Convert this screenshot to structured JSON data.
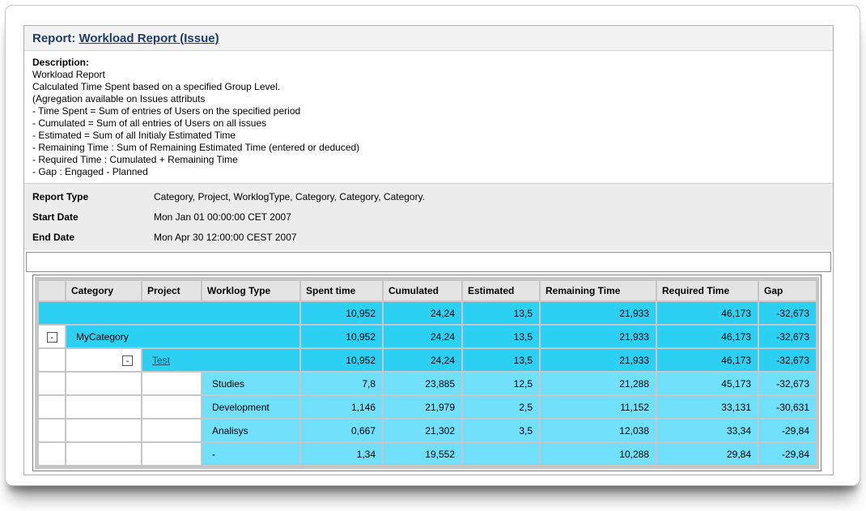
{
  "report": {
    "title_prefix": "Report:",
    "title_link": "Workload Report (Issue)",
    "description": {
      "label": "Description:",
      "lines": [
        "Workload Report",
        "Calculated Time Spent based on a specified Group Level.",
        "(Agregation available on Issues attributs",
        "- Time Spent = Sum of entries of Users on the specified period",
        "- Cumulated = Sum of all entries of Users on all issues",
        "- Estimated = Sum of all Initialy Estimated Time",
        "- Remaining Time : Sum of Remaining Estimated Time (entered or deduced)",
        "- Required Time : Cumulated + Remaining Time",
        "- Gap : Engaged - Planned"
      ]
    },
    "meta": [
      {
        "label": "Report Type",
        "value": "Category, Project, WorklogType, Category, Category, Category."
      },
      {
        "label": "Start Date",
        "value": "Mon Jan 01 00:00:00 CET 2007"
      },
      {
        "label": "End Date",
        "value": "Mon Apr 30 12:00:00 CEST 2007"
      }
    ],
    "table": {
      "columns": [
        "",
        "Category",
        "Project",
        "Worklog Type",
        "Spent time",
        "Cumulated",
        "Estimated",
        "Remaining Time",
        "Required Time",
        "Gap"
      ],
      "rows": [
        {
          "type": "total",
          "label": "",
          "values": [
            "10,952",
            "24,24",
            "13,5",
            "21,933",
            "46,173",
            "-32,673"
          ]
        },
        {
          "type": "category",
          "label": "MyCategory",
          "expander": "-",
          "values": [
            "10,952",
            "24,24",
            "13,5",
            "21,933",
            "46,173",
            "-32,673"
          ]
        },
        {
          "type": "project",
          "label": "Test",
          "expander": "-",
          "values": [
            "10,952",
            "24,24",
            "13,5",
            "21,933",
            "46,173",
            "-32,673"
          ]
        },
        {
          "type": "worklog",
          "label": "Studies",
          "values": [
            "7,8",
            "23,885",
            "12,5",
            "21,288",
            "45,173",
            "-32,673"
          ]
        },
        {
          "type": "worklog",
          "label": "Development",
          "values": [
            "1,146",
            "21,979",
            "2,5",
            "11,152",
            "33,131",
            "-30,631"
          ]
        },
        {
          "type": "worklog",
          "label": "Analisys",
          "values": [
            "0,667",
            "21,302",
            "3,5",
            "12,038",
            "33,34",
            "-29,84"
          ]
        },
        {
          "type": "worklog",
          "label": "-",
          "values": [
            "1,34",
            "19,552",
            "",
            "10,288",
            "29,84",
            "-29,84"
          ]
        }
      ]
    },
    "colors": {
      "title_navy": "#1b3c6d",
      "cell_link": "#1d4a66",
      "row_cyan_bright": "#2bd0f2",
      "row_cyan_light": "#71e0fa",
      "header_gray": "#e4e4e4",
      "panel_gray": "#c6c6c6",
      "meta_gray": "#ececec"
    }
  }
}
